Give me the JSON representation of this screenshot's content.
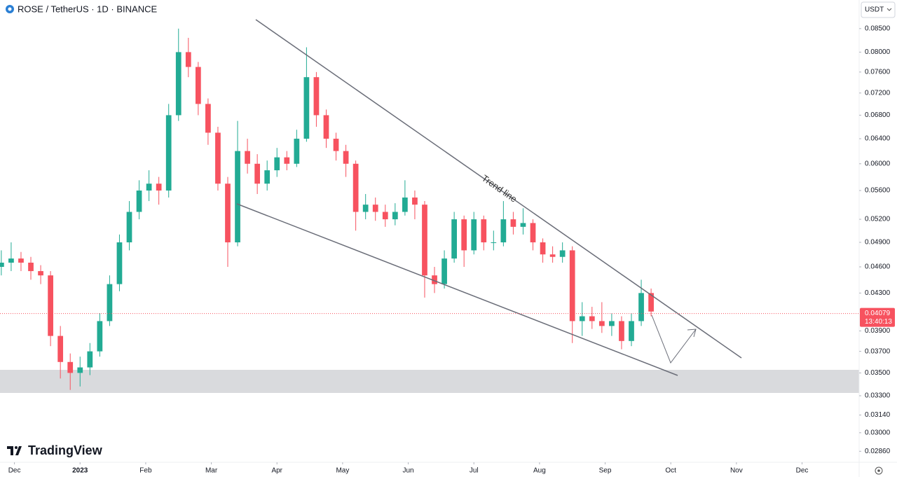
{
  "chart_data": {
    "type": "candlestick",
    "title": "ROSE / TetherUS · 1D · BINANCE",
    "currency": "USDT",
    "brand": "TradingView",
    "annotation": "Trend line",
    "log_scale": true,
    "grid": false,
    "up_color": "#22ab94",
    "down_color": "#f7525f",
    "last_price": 0.04079,
    "countdown": "13:40:13",
    "xlim": [
      -0.22,
      12.87
    ],
    "xticks": [
      {
        "value": 0,
        "label": "Dec"
      },
      {
        "value": 1,
        "label": "2023"
      },
      {
        "value": 2,
        "label": "Feb"
      },
      {
        "value": 3,
        "label": "Mar"
      },
      {
        "value": 4,
        "label": "Apr"
      },
      {
        "value": 5,
        "label": "May"
      },
      {
        "value": 6,
        "label": "Jun"
      },
      {
        "value": 7,
        "label": "Jul"
      },
      {
        "value": 8,
        "label": "Aug"
      },
      {
        "value": 9,
        "label": "Sep"
      },
      {
        "value": 10,
        "label": "Oct"
      },
      {
        "value": 11,
        "label": "Nov"
      },
      {
        "value": 12,
        "label": "Dec"
      }
    ],
    "ylim": [
      0.0278,
      0.0915
    ],
    "yticks": [
      {
        "value": 0.085,
        "label": "0.08500"
      },
      {
        "value": 0.08,
        "label": "0.08000"
      },
      {
        "value": 0.076,
        "label": "0.07600"
      },
      {
        "value": 0.072,
        "label": "0.07200"
      },
      {
        "value": 0.068,
        "label": "0.06800"
      },
      {
        "value": 0.064,
        "label": "0.06400"
      },
      {
        "value": 0.06,
        "label": "0.06000"
      },
      {
        "value": 0.056,
        "label": "0.05600"
      },
      {
        "value": 0.052,
        "label": "0.05200"
      },
      {
        "value": 0.049,
        "label": "0.04900"
      },
      {
        "value": 0.046,
        "label": "0.04600"
      },
      {
        "value": 0.043,
        "label": "0.04300"
      },
      {
        "value": 0.039,
        "label": "0.03900"
      },
      {
        "value": 0.037,
        "label": "0.03700"
      },
      {
        "value": 0.035,
        "label": "0.03500"
      },
      {
        "value": 0.033,
        "label": "0.03300"
      },
      {
        "value": 0.0314,
        "label": "0.03140"
      },
      {
        "value": 0.03,
        "label": "0.03000"
      },
      {
        "value": 0.0286,
        "label": "0.02860"
      }
    ],
    "x": [
      -0.2,
      -0.05,
      0.1,
      0.25,
      0.4,
      0.55,
      0.7,
      0.85,
      1,
      1.15,
      1.3,
      1.45,
      1.6,
      1.75,
      1.9,
      2.05,
      2.2,
      2.35,
      2.5,
      2.65,
      2.8,
      2.95,
      3.1,
      3.25,
      3.4,
      3.55,
      3.7,
      3.85,
      4,
      4.15,
      4.3,
      4.45,
      4.6,
      4.75,
      4.9,
      5.05,
      5.2,
      5.35,
      5.5,
      5.65,
      5.8,
      5.95,
      6.1,
      6.25,
      6.4,
      6.55,
      6.7,
      6.85,
      7,
      7.15,
      7.3,
      7.45,
      7.6,
      7.75,
      7.9,
      8.05,
      8.2,
      8.35,
      8.5,
      8.65,
      8.8,
      8.95,
      9.1,
      9.25,
      9.4,
      9.55,
      9.7
    ],
    "open": [
      0.046,
      0.0465,
      0.047,
      0.0465,
      0.0455,
      0.045,
      0.0385,
      0.036,
      0.035,
      0.0355,
      0.037,
      0.04,
      0.044,
      0.049,
      0.053,
      0.056,
      0.057,
      0.056,
      0.068,
      0.08,
      0.077,
      0.07,
      0.065,
      0.057,
      0.049,
      0.062,
      0.06,
      0.057,
      0.059,
      0.061,
      0.06,
      0.064,
      0.075,
      0.068,
      0.064,
      0.062,
      0.06,
      0.053,
      0.054,
      0.053,
      0.052,
      0.053,
      0.055,
      0.054,
      0.045,
      0.044,
      0.047,
      0.052,
      0.048,
      0.052,
      0.049,
      0.049,
      0.052,
      0.051,
      0.0515,
      0.049,
      0.0475,
      0.0472,
      0.048,
      0.04,
      0.0405,
      0.04,
      0.0395,
      0.04,
      0.038,
      0.04,
      0.043
    ],
    "high": [
      0.048,
      0.049,
      0.0478,
      0.0472,
      0.0462,
      0.0455,
      0.0395,
      0.0368,
      0.0365,
      0.0378,
      0.0408,
      0.045,
      0.05,
      0.0545,
      0.0575,
      0.059,
      0.058,
      0.07,
      0.085,
      0.083,
      0.078,
      0.071,
      0.066,
      0.058,
      0.067,
      0.064,
      0.0615,
      0.0605,
      0.0625,
      0.062,
      0.0655,
      0.081,
      0.076,
      0.069,
      0.065,
      0.063,
      0.0605,
      0.0555,
      0.055,
      0.054,
      0.0542,
      0.0575,
      0.056,
      0.0545,
      0.046,
      0.048,
      0.053,
      0.0525,
      0.053,
      0.0525,
      0.0505,
      0.0545,
      0.053,
      0.0535,
      0.052,
      0.0495,
      0.0485,
      0.049,
      0.0485,
      0.042,
      0.0415,
      0.042,
      0.0408,
      0.0405,
      0.0408,
      0.0445,
      0.0435
    ],
    "low": [
      0.045,
      0.0455,
      0.0455,
      0.0445,
      0.044,
      0.0375,
      0.0345,
      0.0335,
      0.0338,
      0.0348,
      0.0365,
      0.0395,
      0.0432,
      0.048,
      0.052,
      0.0545,
      0.054,
      0.055,
      0.067,
      0.075,
      0.068,
      0.063,
      0.056,
      0.046,
      0.0485,
      0.0585,
      0.0555,
      0.056,
      0.058,
      0.059,
      0.0595,
      0.0635,
      0.066,
      0.0625,
      0.0605,
      0.058,
      0.0505,
      0.052,
      0.0518,
      0.051,
      0.0512,
      0.0525,
      0.052,
      0.0425,
      0.043,
      0.0435,
      0.0465,
      0.046,
      0.0475,
      0.048,
      0.048,
      0.0485,
      0.05,
      0.05,
      0.048,
      0.0465,
      0.0465,
      0.0465,
      0.0378,
      0.0385,
      0.0392,
      0.0388,
      0.0385,
      0.0372,
      0.0375,
      0.0395,
      0.0405
    ],
    "close": [
      0.0465,
      0.047,
      0.0465,
      0.0455,
      0.045,
      0.0385,
      0.036,
      0.035,
      0.0355,
      0.037,
      0.04,
      0.044,
      0.049,
      0.053,
      0.056,
      0.057,
      0.056,
      0.068,
      0.08,
      0.077,
      0.07,
      0.065,
      0.057,
      0.049,
      0.062,
      0.06,
      0.057,
      0.059,
      0.061,
      0.06,
      0.064,
      0.075,
      0.068,
      0.064,
      0.062,
      0.06,
      0.053,
      0.054,
      0.053,
      0.052,
      0.053,
      0.055,
      0.054,
      0.045,
      0.044,
      0.047,
      0.052,
      0.048,
      0.052,
      0.049,
      0.049,
      0.052,
      0.051,
      0.0515,
      0.049,
      0.0475,
      0.0472,
      0.048,
      0.04,
      0.0405,
      0.04,
      0.0395,
      0.04,
      0.038,
      0.04,
      0.043,
      0.041
    ]
  }
}
